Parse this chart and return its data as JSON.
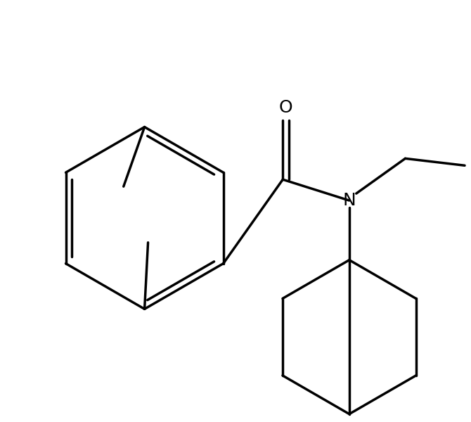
{
  "background_color": "#ffffff",
  "line_color": "#000000",
  "line_width": 2.5,
  "figure_width": 6.7,
  "figure_height": 6.0,
  "dpi": 100,
  "font_size_atom": 18
}
